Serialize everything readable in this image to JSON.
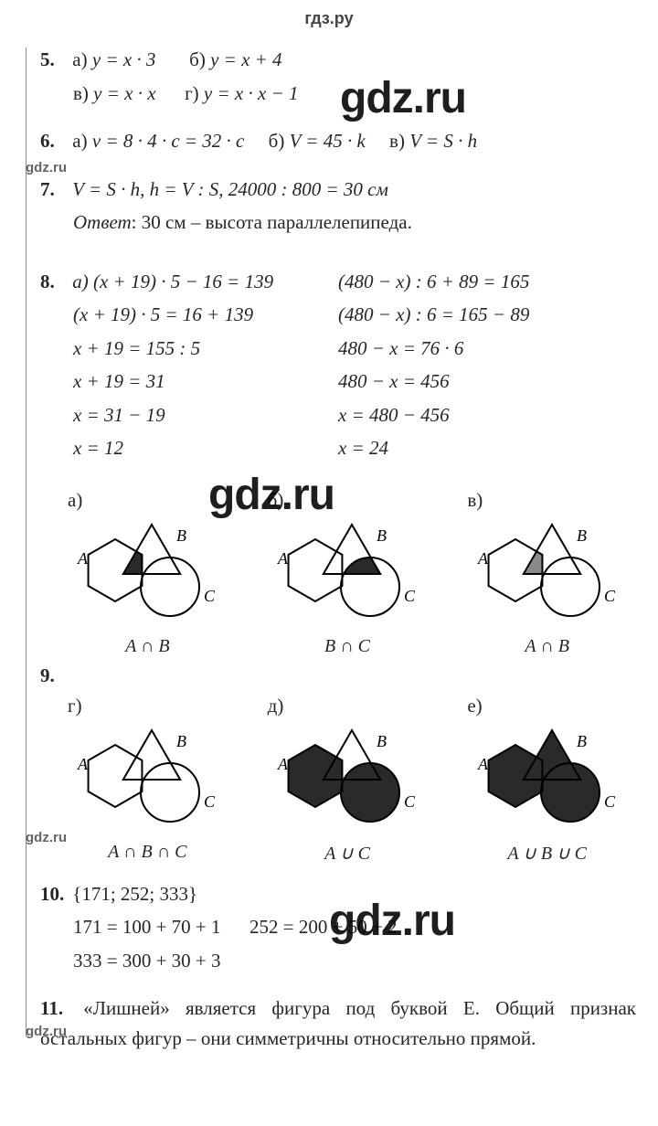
{
  "header": "гдз.ру",
  "watermarks": {
    "big": "gdz.ru",
    "small": "gdz.ru"
  },
  "p5": {
    "num": "5.",
    "a_lbl": "а)",
    "a": "y = x · 3",
    "b_lbl": "б)",
    "b": "y = x + 4",
    "v_lbl": "в)",
    "v": "y = x · x",
    "g_lbl": "г)",
    "g": "y = x · x − 1"
  },
  "p6": {
    "num": "6.",
    "a_lbl": "а)",
    "a": "v = 8 · 4 · c = 32 · c",
    "b_lbl": "б)",
    "b": "V = 45 · k",
    "v_lbl": "в)",
    "v": "V = S · h"
  },
  "p7": {
    "num": "7.",
    "line": "V = S · h,  h = V : S,  24000 : 800 = 30 см",
    "ans_lbl": "Ответ",
    "ans": ": 30 см – высота параллелепипеда."
  },
  "p8": {
    "num": "8.",
    "left": [
      "а) (x + 19) · 5 − 16 = 139",
      "(x + 19) · 5 = 16 + 139",
      "x + 19 = 155 : 5",
      "x + 19 = 31",
      "x = 31 − 19",
      "x = 12"
    ],
    "right": [
      "(480 − x) : 6 + 89 = 165",
      "(480 − x) : 6 = 165 − 89",
      "480 − x = 76 · 6",
      "480 − x = 456",
      "x = 480 − 456",
      "x = 24"
    ]
  },
  "p9": {
    "num": "9.",
    "cells": [
      {
        "lbl": "а)",
        "cap": "A ∩ B",
        "fill": "a"
      },
      {
        "lbl": "б)",
        "cap": "B ∩ C",
        "fill": "b"
      },
      {
        "lbl": "в)",
        "cap": "A ∩ B",
        "fill": "c"
      },
      {
        "lbl": "г)",
        "cap": "A ∩ B ∩ C",
        "fill": "d"
      },
      {
        "lbl": "д)",
        "cap": "A ∪ C",
        "fill": "e"
      },
      {
        "lbl": "е)",
        "cap": "A ∪ B ∪ C",
        "fill": "f"
      }
    ],
    "shape_labels": {
      "A": "A",
      "B": "B",
      "C": "C"
    },
    "colors": {
      "stroke": "#000000",
      "fill": "#2a2a2a",
      "bg": "#ffffff"
    }
  },
  "p10": {
    "num": "10.",
    "l1": "{171; 252; 333}",
    "l2a": "171 = 100 + 70 + 1",
    "l2b": "252 = 200 + 50 + 2",
    "l3": "333 = 300 + 30 + 3"
  },
  "p11": {
    "num": "11.",
    "text": "«Лишней» является фигура под буквой E. Общий признак остальных фигур – они симметричны от­носительно прямой."
  }
}
